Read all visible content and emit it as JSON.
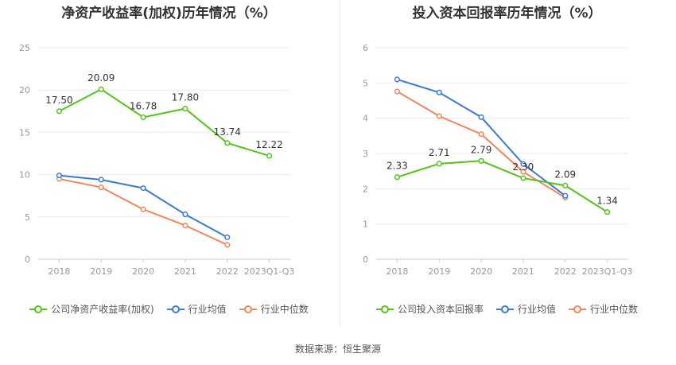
{
  "source": "数据来源：恒生聚源",
  "chart_data": [
    {
      "type": "line",
      "title": "净资产收益率(加权)历年情况（%）",
      "categories": [
        "2018",
        "2019",
        "2020",
        "2021",
        "2022",
        "2023Q1-Q3"
      ],
      "ylim": [
        0,
        25
      ],
      "yticks": [
        0,
        5,
        10,
        15,
        20,
        25
      ],
      "grid": true,
      "legend_position": "bottom",
      "series": [
        {
          "name": "公司净资产收益率(加权)",
          "color": "#52c41a",
          "values": [
            17.5,
            20.09,
            16.78,
            17.8,
            13.74,
            12.22
          ],
          "labels": [
            "17.50",
            "20.09",
            "16.78",
            "17.80",
            "13.74",
            "12.22"
          ],
          "show_labels": true
        },
        {
          "name": "行业均值",
          "color": "#3a7bd5",
          "values": [
            9.9,
            9.4,
            8.4,
            5.3,
            2.6,
            null
          ],
          "show_labels": false
        },
        {
          "name": "行业中位数",
          "color": "#f0875a",
          "values": [
            9.5,
            8.5,
            5.9,
            4.0,
            1.7,
            null
          ],
          "show_labels": false
        }
      ]
    },
    {
      "type": "line",
      "title": "投入资本回报率历年情况（%）",
      "categories": [
        "2018",
        "2019",
        "2020",
        "2021",
        "2022",
        "2023Q1-Q3"
      ],
      "ylim": [
        0,
        6
      ],
      "yticks": [
        0,
        1,
        2,
        3,
        4,
        5,
        6
      ],
      "grid": true,
      "legend_position": "bottom",
      "series": [
        {
          "name": "公司投入资本回报率",
          "color": "#52c41a",
          "values": [
            2.33,
            2.71,
            2.79,
            2.3,
            2.09,
            1.34
          ],
          "labels": [
            "2.33",
            "2.71",
            "2.79",
            "2.30",
            "2.09",
            "1.34"
          ],
          "show_labels": true
        },
        {
          "name": "行业均值",
          "color": "#3a7bd5",
          "values": [
            5.1,
            4.73,
            4.03,
            2.7,
            1.8,
            null
          ],
          "show_labels": false
        },
        {
          "name": "行业中位数",
          "color": "#f0875a",
          "values": [
            4.76,
            4.06,
            3.55,
            2.48,
            1.75,
            null
          ],
          "show_labels": false
        }
      ]
    }
  ]
}
